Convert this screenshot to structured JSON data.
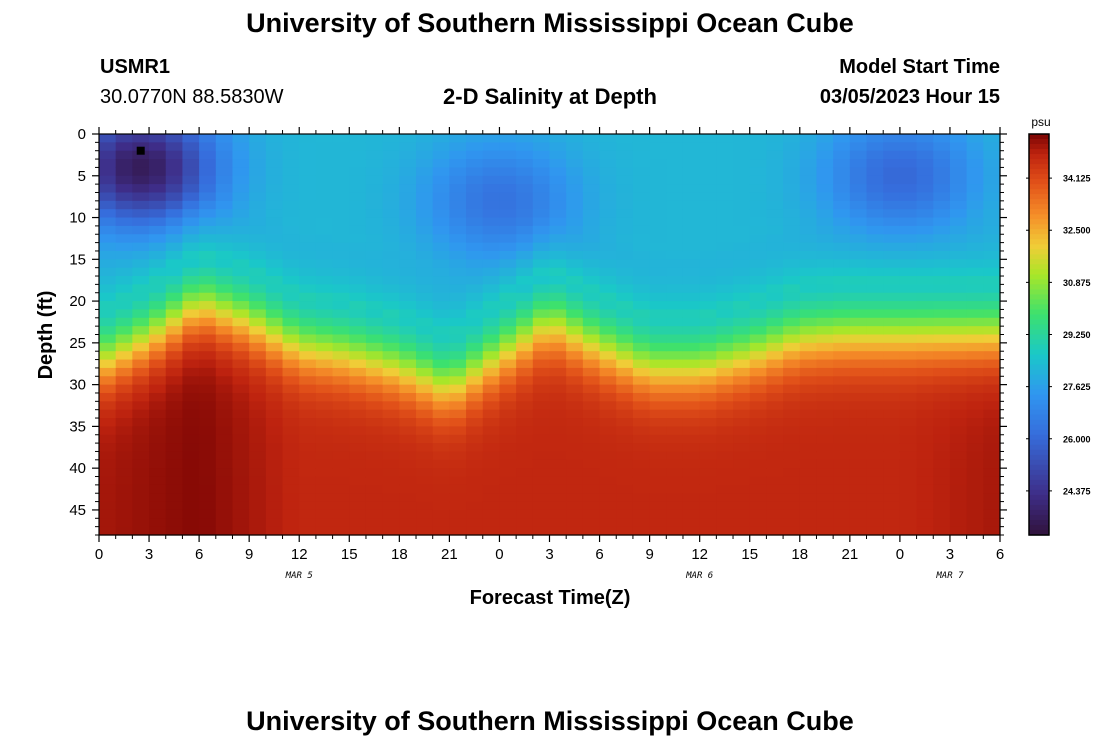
{
  "page": {
    "title": "University of Southern Mississippi Ocean Cube",
    "footer_title": "University of Southern Mississippi Ocean Cube",
    "station_id": "USMR1",
    "station_coords": "30.0770N  88.5830W",
    "subtitle": "2-D Salinity at Depth",
    "start_time_label": "Model Start Time",
    "start_time_value": "03/05/2023 Hour 15"
  },
  "chart_data": {
    "type": "heatmap",
    "title": "2-D Salinity at Depth",
    "xlabel": "Forecast Time(Z)",
    "ylabel": "Depth (ft)",
    "x_range_hours": [
      0,
      54
    ],
    "y_range_ft": [
      0,
      48
    ],
    "x_ticks": [
      "0",
      "3",
      "6",
      "9",
      "12",
      "15",
      "18",
      "21",
      "0",
      "3",
      "6",
      "9",
      "12",
      "15",
      "18",
      "21",
      "0",
      "3",
      "6"
    ],
    "y_ticks": [
      "0",
      "5",
      "10",
      "15",
      "20",
      "25",
      "30",
      "35",
      "40",
      "45"
    ],
    "date_labels": [
      {
        "label": "MAR 5",
        "hour": 12
      },
      {
        "label": "MAR 6",
        "hour": 36
      },
      {
        "label": "MAR 7",
        "hour": 51
      }
    ],
    "colorbar": {
      "unit": "psu",
      "range": [
        23.0,
        35.5
      ],
      "ticks": [
        "34.125",
        "32.500",
        "30.875",
        "29.250",
        "27.625",
        "26.000",
        "24.375"
      ],
      "tick_values": [
        34.125,
        32.5,
        30.875,
        29.25,
        27.625,
        26.0,
        24.375
      ]
    },
    "halocline_depth_ft": {
      "hours": [
        0,
        3,
        6,
        9,
        12,
        15,
        18,
        21,
        24,
        27,
        30,
        33,
        36,
        39,
        42,
        45,
        48,
        51,
        54
      ],
      "depth": [
        27.5,
        24.5,
        20.5,
        22.5,
        25.5,
        26.5,
        28.0,
        30.5,
        26.5,
        22.5,
        25.5,
        28.0,
        28.0,
        26.5,
        24.5,
        24.0,
        24.0,
        24.0,
        24.0
      ]
    },
    "surface_features": [
      {
        "hour": 2.5,
        "depth": 4,
        "value": 23.5
      },
      {
        "hour": 24,
        "depth": 8,
        "value": 26.3
      },
      {
        "hour": 48,
        "depth": 5,
        "value": 26.0
      }
    ],
    "bottom_salinity_psu": {
      "hours": [
        0,
        6,
        12,
        24,
        36,
        48,
        54
      ],
      "values": [
        35.1,
        35.4,
        34.8,
        34.8,
        34.8,
        34.8,
        35.1
      ]
    },
    "marker": {
      "hour": 2.5,
      "depth": 2
    }
  }
}
